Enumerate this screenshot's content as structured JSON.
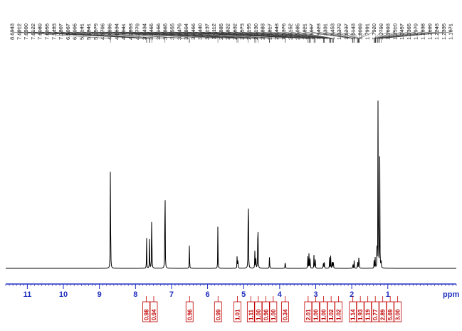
{
  "chart_data": {
    "type": "line",
    "title": "",
    "xlabel": "ppm",
    "ylabel": "",
    "xlim": [
      11.6,
      -0.9
    ],
    "x_reversed": true,
    "grid": false,
    "axis_color": "#1f2fbf",
    "spectrum_color": "#000000",
    "peak_label_color": "#1a1a1a",
    "integral_color": "#c00000",
    "xticks": [
      {
        "value": 11,
        "label": "11"
      },
      {
        "value": 10,
        "label": "10"
      },
      {
        "value": 9,
        "label": "9"
      },
      {
        "value": 8,
        "label": "8"
      },
      {
        "value": 7,
        "label": "7"
      },
      {
        "value": 6,
        "label": "6"
      },
      {
        "value": 5,
        "label": "5"
      },
      {
        "value": 4,
        "label": "4"
      },
      {
        "value": 3,
        "label": "3"
      },
      {
        "value": 2,
        "label": "2"
      },
      {
        "value": 1,
        "label": "1"
      }
    ],
    "peak_labels": [
      "8.6943",
      "7.6912",
      "7.6900",
      "7.6122",
      "7.6089",
      "7.6055",
      "7.5483",
      "7.1807",
      "6.5067",
      "6.5005",
      "5.7141",
      "5.1841",
      "5.1579",
      "4.8706",
      "4.6896",
      "4.6634",
      "4.6041",
      "4.2853",
      "4.2779",
      "3.8434",
      "3.8465",
      "3.2166",
      "3.1865",
      "3.1555",
      "3.1476",
      "3.1804",
      "3.0466",
      "3.0440",
      "3.0137",
      "3.0112",
      "2.7885",
      "2.7822",
      "2.7632",
      "2.7573",
      "2.6195",
      "2.6130",
      "2.5883",
      "2.5817",
      "2.5443",
      "2.5376",
      "2.5152",
      "2.5085",
      "1.9821",
      "1.9667",
      "1.9423",
      "1.9331",
      "1.8453",
      "1.8379",
      "1.8237",
      "1.8143",
      "1.8069",
      "1.7991",
      "1.7920",
      "1.3799",
      "1.3693",
      "1.3510",
      "1.3457",
      "1.3365",
      "1.2979",
      "1.2838",
      "1.2699",
      "1.2243",
      "1.2335",
      "1.1871"
    ],
    "peaks": [
      {
        "x": 8.6943,
        "y": 0.64
      },
      {
        "x": 7.691,
        "y": 0.14
      },
      {
        "x": 7.609,
        "y": 0.16
      },
      {
        "x": 7.5483,
        "y": 0.36
      },
      {
        "x": 7.1807,
        "y": 0.61
      },
      {
        "x": 6.503,
        "y": 0.13
      },
      {
        "x": 5.7141,
        "y": 0.2
      },
      {
        "x": 5.18,
        "y": 0.065
      },
      {
        "x": 5.158,
        "y": 0.07
      },
      {
        "x": 4.8706,
        "y": 0.58
      },
      {
        "x": 4.69,
        "y": 0.085
      },
      {
        "x": 4.663,
        "y": 0.085
      },
      {
        "x": 4.6041,
        "y": 0.36
      },
      {
        "x": 4.281,
        "y": 0.07
      },
      {
        "x": 3.845,
        "y": 0.05
      },
      {
        "x": 3.22,
        "y": 0.075
      },
      {
        "x": 3.186,
        "y": 0.075
      },
      {
        "x": 3.155,
        "y": 0.065
      },
      {
        "x": 3.047,
        "y": 0.08
      },
      {
        "x": 3.013,
        "y": 0.06
      },
      {
        "x": 2.787,
        "y": 0.045
      },
      {
        "x": 2.76,
        "y": 0.04
      },
      {
        "x": 2.616,
        "y": 0.05
      },
      {
        "x": 2.585,
        "y": 0.055
      },
      {
        "x": 2.541,
        "y": 0.06
      },
      {
        "x": 2.512,
        "y": 0.055
      },
      {
        "x": 1.967,
        "y": 0.03
      },
      {
        "x": 1.933,
        "y": 0.035
      },
      {
        "x": 1.838,
        "y": 0.04
      },
      {
        "x": 1.807,
        "y": 0.05
      },
      {
        "x": 1.792,
        "y": 0.04
      },
      {
        "x": 1.38,
        "y": 0.035
      },
      {
        "x": 1.35,
        "y": 0.05
      },
      {
        "x": 1.3,
        "y": 0.1
      },
      {
        "x": 1.27,
        "y": 0.95
      },
      {
        "x": 1.2243,
        "y": 0.55
      },
      {
        "x": 1.187,
        "y": 0.05
      }
    ],
    "integrals": [
      {
        "x": 7.7,
        "label": "0.98"
      },
      {
        "x": 7.55,
        "label": "0.94"
      },
      {
        "x": 6.5,
        "label": "0.96"
      },
      {
        "x": 5.71,
        "label": "0.99"
      },
      {
        "x": 5.17,
        "label": "1.01"
      },
      {
        "x": 4.8,
        "label": "1.11"
      },
      {
        "x": 4.66,
        "label": "1.00"
      },
      {
        "x": 4.48,
        "label": "0.96"
      },
      {
        "x": 4.28,
        "label": "1.00"
      },
      {
        "x": 3.85,
        "label": "0.34"
      },
      {
        "x": 3.21,
        "label": "2.01"
      },
      {
        "x": 3.05,
        "label": "1.00"
      },
      {
        "x": 2.78,
        "label": "1.00"
      },
      {
        "x": 2.58,
        "label": "1.02"
      },
      {
        "x": 2.5,
        "label": "1.02"
      },
      {
        "x": 1.97,
        "label": "1.14"
      },
      {
        "x": 1.82,
        "label": "1.93"
      },
      {
        "x": 1.62,
        "label": "1.19"
      },
      {
        "x": 1.38,
        "label": "0.77"
      },
      {
        "x": 1.3,
        "label": "2.89"
      },
      {
        "x": 1.24,
        "label": "5.69"
      },
      {
        "x": 1.19,
        "label": "3.00"
      }
    ]
  }
}
